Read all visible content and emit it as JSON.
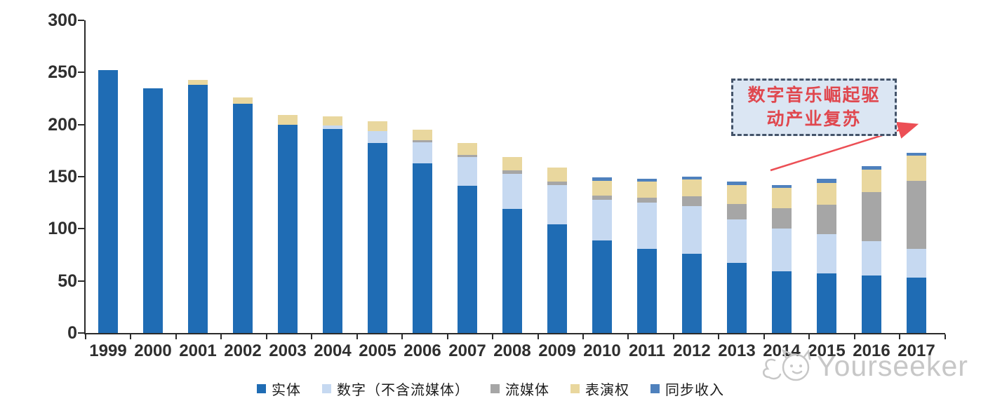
{
  "chart_data": {
    "type": "bar",
    "stacked": true,
    "title": "",
    "xlabel": "",
    "ylabel": "",
    "categories": [
      "1999",
      "2000",
      "2001",
      "2002",
      "2003",
      "2004",
      "2005",
      "2006",
      "2007",
      "2008",
      "2009",
      "2010",
      "2011",
      "2012",
      "2013",
      "2014",
      "2015",
      "2016",
      "2017"
    ],
    "series": [
      {
        "name": "实体",
        "color": "#1f6cb4",
        "values": [
          252,
          235,
          238,
          220,
          200,
          196,
          182,
          163,
          141,
          119,
          104,
          89,
          81,
          76,
          67,
          59,
          57,
          55,
          53
        ]
      },
      {
        "name": "数字（不含流媒体）",
        "color": "#c6d9f1",
        "values": [
          0,
          0,
          0,
          0,
          0,
          3,
          12,
          20,
          28,
          34,
          38,
          39,
          44,
          46,
          42,
          41,
          38,
          33,
          28
        ]
      },
      {
        "name": "流媒体",
        "color": "#a6a6a6",
        "values": [
          0,
          0,
          0,
          0,
          0,
          0,
          0,
          2,
          2,
          3,
          3,
          4,
          5,
          9,
          15,
          20,
          28,
          47,
          65
        ]
      },
      {
        "name": "表演权",
        "color": "#e9d79e",
        "values": [
          0,
          0,
          5,
          6,
          9,
          9,
          9,
          10,
          11,
          13,
          14,
          14,
          15,
          16,
          18,
          19,
          21,
          22,
          24
        ]
      },
      {
        "name": "同步收入",
        "color": "#4f81bd",
        "values": [
          0,
          0,
          0,
          0,
          0,
          0,
          0,
          0,
          0,
          0,
          0,
          3,
          3,
          3,
          3,
          3,
          4,
          3,
          3
        ]
      }
    ],
    "ylim": [
      0,
      300
    ],
    "yticks": [
      0,
      50,
      100,
      150,
      200,
      250,
      300
    ],
    "grid": false,
    "legend_position": "bottom"
  },
  "annotation": {
    "line1": "数字音乐崛起驱",
    "line2": "动产业复苏",
    "text_color": "#e0474e",
    "border_color": "#44546a",
    "fill_color": "#dbe6f3",
    "arrow_color": "#ec4f55"
  },
  "watermark": {
    "text": "Yourseeker",
    "color": "#c7c7c7"
  },
  "axis_color": "#2b2b2b"
}
